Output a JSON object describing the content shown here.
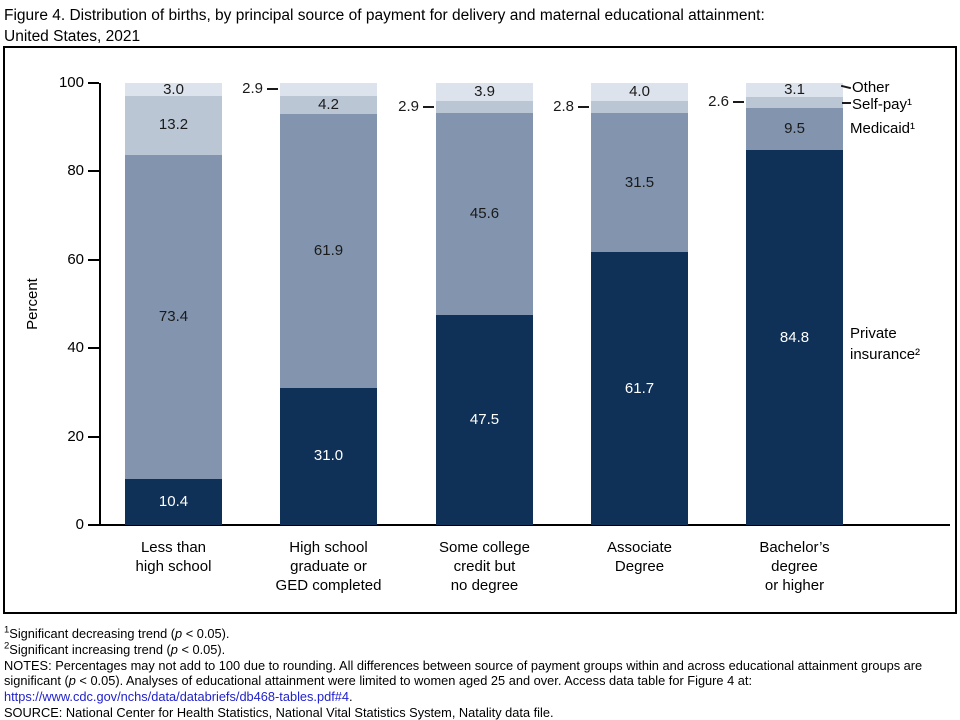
{
  "title": {
    "line1": "Figure 4. Distribution of births, by principal source of payment for delivery and maternal educational attainment:",
    "line2": "United States, 2021"
  },
  "chart_data": {
    "type": "bar",
    "stacked": true,
    "title": "Figure 4. Distribution of births, by principal source of payment for delivery and maternal educational attainment: United States, 2021",
    "xlabel": "",
    "ylabel": "Percent",
    "ylim": [
      0,
      100
    ],
    "yticks": [
      0,
      20,
      40,
      60,
      80,
      100
    ],
    "grid": false,
    "legend_position": "right",
    "categories": [
      [
        "Less than",
        "high school"
      ],
      [
        "High school",
        "graduate or",
        "GED completed"
      ],
      [
        "Some college",
        "credit but",
        "no degree"
      ],
      [
        "Associate",
        "Degree"
      ],
      [
        "Bachelor’s",
        "degree",
        "or higher"
      ]
    ],
    "series": [
      {
        "name": "Private insurance",
        "legend_lines": [
          "Private",
          "insurance²"
        ],
        "color": "#0f3057",
        "label_color": "#ffffff",
        "values": [
          10.4,
          31.0,
          47.5,
          61.7,
          84.8
        ],
        "label_placement": [
          "inside",
          "inside",
          "inside",
          "inside",
          "inside"
        ]
      },
      {
        "name": "Medicaid",
        "legend_lines": [
          "Medicaid¹"
        ],
        "color": "#8294ae",
        "label_color": "#1a1a1a",
        "values": [
          73.4,
          61.9,
          45.6,
          31.5,
          9.5
        ],
        "label_placement": [
          "inside",
          "inside",
          "inside",
          "inside",
          "inside"
        ]
      },
      {
        "name": "Self-pay",
        "legend_lines": [
          "Self-pay¹"
        ],
        "color": "#bac6d4",
        "label_color": "#1a1a1a",
        "values": [
          13.2,
          4.2,
          2.9,
          2.8,
          2.6
        ],
        "label_placement": [
          "inside",
          "inside",
          "leader-left",
          "leader-left",
          "leader-left"
        ]
      },
      {
        "name": "Other",
        "legend_lines": [
          "Other"
        ],
        "color": "#dde3ec",
        "label_color": "#1a1a1a",
        "values": [
          3.0,
          2.9,
          3.9,
          4.0,
          3.1
        ],
        "label_placement": [
          "inside",
          "leader-left",
          "inside",
          "inside",
          "inside"
        ]
      }
    ]
  },
  "footnotes": {
    "fn1": {
      "sup": "1",
      "pre": "Significant decreasing trend (",
      "italic": "p",
      "post": " < 0.05)."
    },
    "fn2": {
      "sup": "2",
      "pre": "Significant increasing trend (",
      "italic": "p",
      "post": " < 0.05)."
    },
    "notes": {
      "pre": "NOTES: Percentages may not add to 100 due to rounding. All differences between source of payment groups within and across educational attainment groups are significant (",
      "italic": "p",
      "post": " < 0.05). Analyses of educational attainment were limited to women aged 25 and over. Access data table for Figure 4 at:"
    },
    "link": "https://www.cdc.gov/nchs/data/databriefs/db468-tables.pdf#4",
    "link_suffix": ".",
    "source": "SOURCE: National Center for Health Statistics, National Vital Statistics System, Natality data file."
  },
  "colors": {
    "link": "#2222cc",
    "axis": "#000000"
  }
}
